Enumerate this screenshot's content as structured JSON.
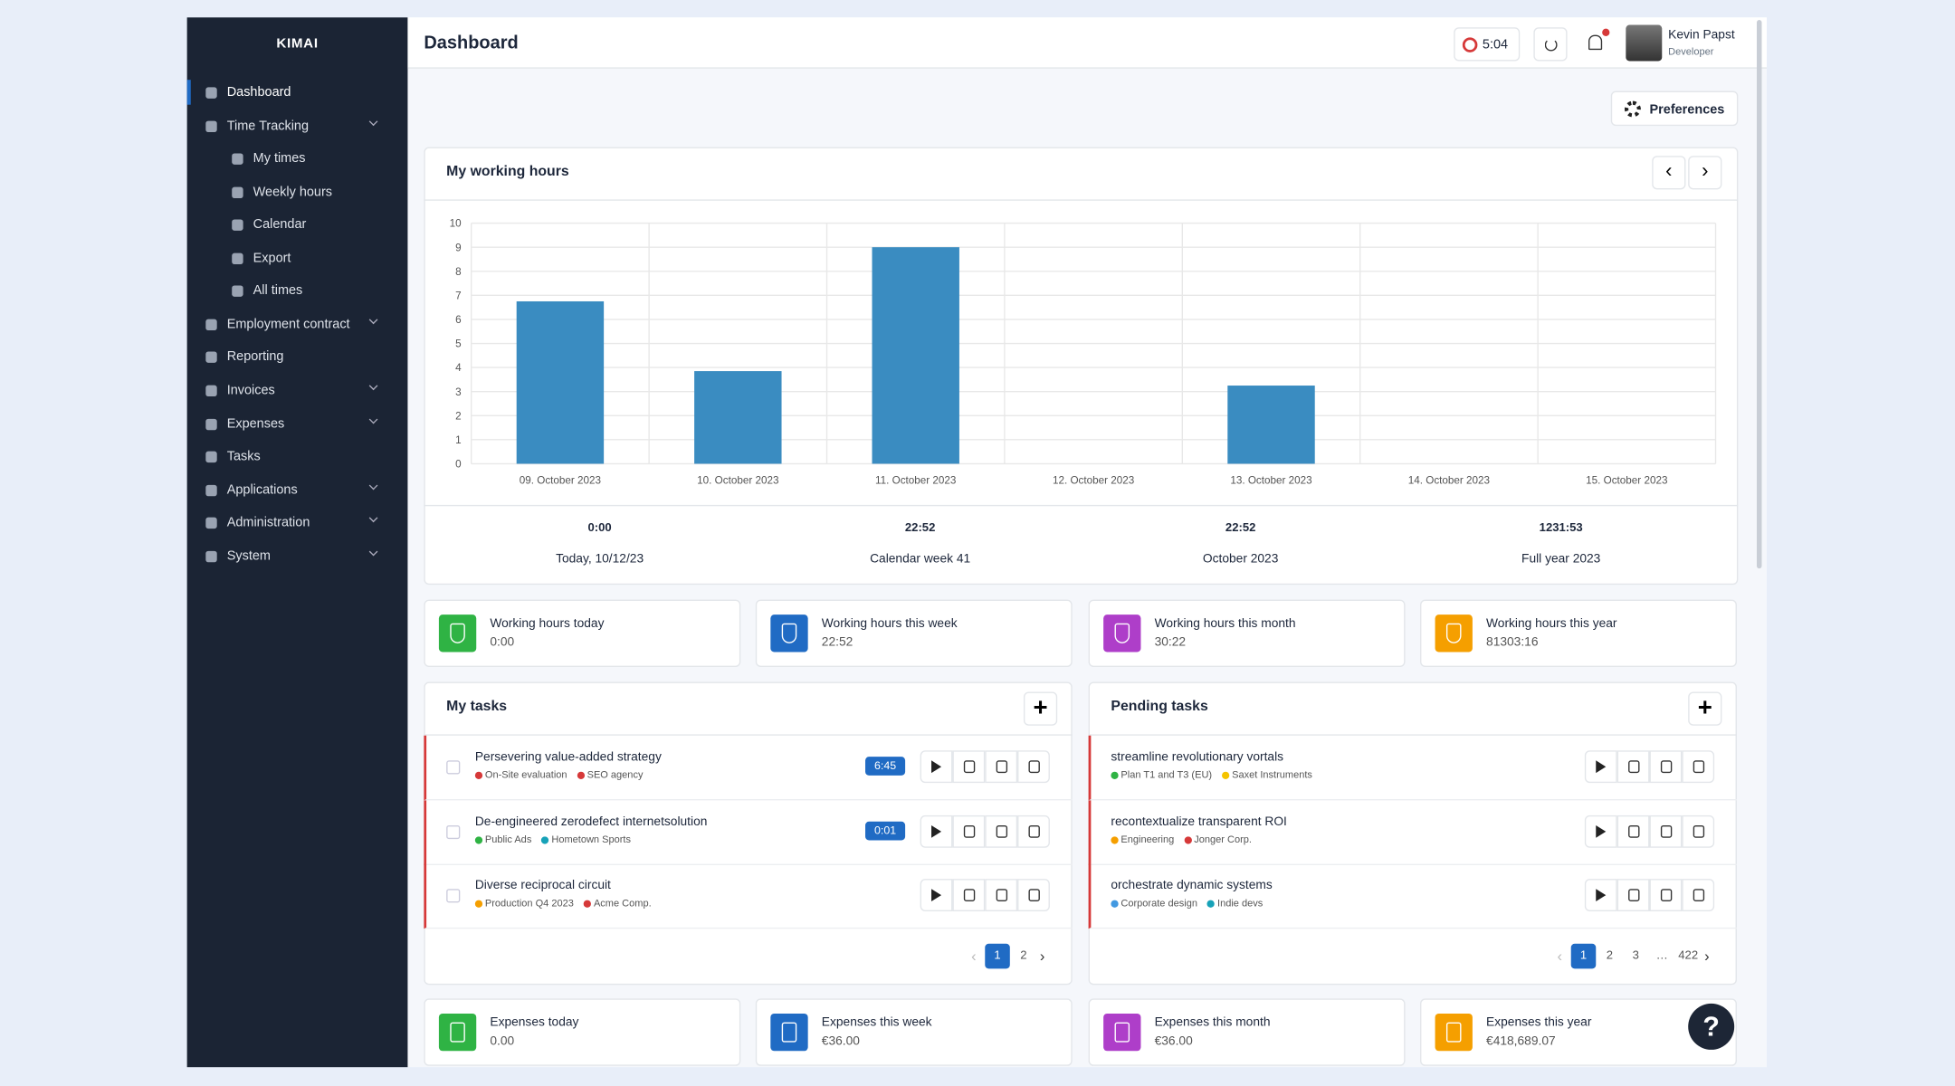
{
  "sidebar": {
    "brand": "KIMAI",
    "items": [
      {
        "label": "Dashboard",
        "active": true
      },
      {
        "label": "Time Tracking",
        "expandable": true,
        "children": [
          {
            "label": "My times"
          },
          {
            "label": "Weekly hours"
          },
          {
            "label": "Calendar"
          },
          {
            "label": "Export"
          },
          {
            "label": "All times"
          }
        ]
      },
      {
        "label": "Employment contract",
        "expandable": true
      },
      {
        "label": "Reporting"
      },
      {
        "label": "Invoices",
        "expandable": true
      },
      {
        "label": "Expenses",
        "expandable": true
      },
      {
        "label": "Tasks"
      },
      {
        "label": "Applications",
        "expandable": true
      },
      {
        "label": "Administration",
        "expandable": true
      },
      {
        "label": "System",
        "expandable": true
      }
    ]
  },
  "header": {
    "title": "Dashboard",
    "timer": "5:04",
    "user": {
      "name": "Kevin Papst",
      "role": "Developer"
    }
  },
  "preferences": "Preferences",
  "chart_data": {
    "type": "bar",
    "title": "My working hours",
    "categories": [
      "09. October 2023",
      "10. October 2023",
      "11. October 2023",
      "12. October 2023",
      "13. October 2023",
      "14. October 2023",
      "15. October 2023"
    ],
    "values": [
      6.75,
      3.85,
      9.0,
      0,
      3.25,
      0,
      0
    ],
    "color": "#3a8cc1",
    "ylim": [
      0,
      10
    ],
    "yticks": [
      0,
      1,
      2,
      3,
      4,
      5,
      6,
      7,
      8,
      9,
      10
    ],
    "grid": true
  },
  "summary": [
    {
      "value": "0:00",
      "label": "Today, 10/12/23"
    },
    {
      "value": "22:52",
      "label": "Calendar week 41"
    },
    {
      "value": "22:52",
      "label": "October 2023"
    },
    {
      "value": "1231:53",
      "label": "Full year 2023"
    }
  ],
  "stat_cards": [
    {
      "label": "Working hours today",
      "value": "0:00",
      "color": "#2fb344"
    },
    {
      "label": "Working hours this week",
      "value": "22:52",
      "color": "#206bc4"
    },
    {
      "label": "Working hours this month",
      "value": "30:22",
      "color": "#ae3ec9"
    },
    {
      "label": "Working hours this year",
      "value": "81303:16",
      "color": "#f59f00"
    }
  ],
  "task_cards": [
    {
      "title": "My tasks",
      "tasks": [
        {
          "title": "Persevering value-added strategy",
          "duration": "6:45",
          "tags": [
            {
              "name": "On-Site evaluation",
              "color": "#d63939"
            },
            {
              "name": "SEO agency",
              "color": "#d63939"
            }
          ]
        },
        {
          "title": "De-engineered zerodefect internetsolution",
          "duration": "0:01",
          "tags": [
            {
              "name": "Public Ads",
              "color": "#2fb344"
            },
            {
              "name": "Hometown Sports",
              "color": "#17a2b8"
            }
          ]
        },
        {
          "title": "Diverse reciprocal circuit",
          "tags": [
            {
              "name": "Production Q4 2023",
              "color": "#f59f00"
            },
            {
              "name": "Acme Comp.",
              "color": "#d63939"
            }
          ]
        }
      ],
      "pages": [
        "1",
        "2"
      ]
    },
    {
      "title": "Pending tasks",
      "tasks": [
        {
          "title": "streamline revolutionary vortals",
          "tags": [
            {
              "name": "Plan T1 and T3 (EU)",
              "color": "#2fb344"
            },
            {
              "name": "Saxet Instruments",
              "color": "#f5c400"
            }
          ]
        },
        {
          "title": "recontextualize transparent ROI",
          "tags": [
            {
              "name": "Engineering",
              "color": "#f59f00"
            },
            {
              "name": "Jonger Corp.",
              "color": "#d63939"
            }
          ]
        },
        {
          "title": "orchestrate dynamic systems",
          "tags": [
            {
              "name": "Corporate design",
              "color": "#4299e1"
            },
            {
              "name": "Indie devs",
              "color": "#17a2b8"
            }
          ]
        }
      ],
      "pages": [
        "1",
        "2",
        "3",
        "…",
        "422"
      ]
    }
  ],
  "expense_cards": [
    {
      "label": "Expenses today",
      "value": "0.00",
      "color": "#2fb344"
    },
    {
      "label": "Expenses this week",
      "value": "€36.00",
      "color": "#206bc4"
    },
    {
      "label": "Expenses this month",
      "value": "€36.00",
      "color": "#ae3ec9"
    },
    {
      "label": "Expenses this year",
      "value": "€418,689.07",
      "color": "#f59f00"
    }
  ],
  "help": "?"
}
